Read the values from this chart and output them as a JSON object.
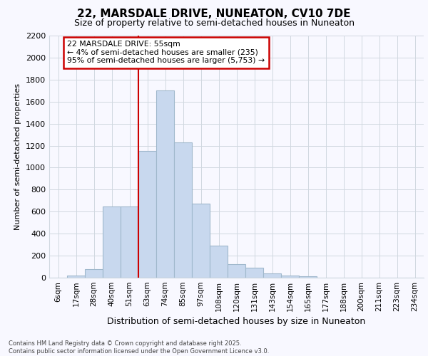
{
  "title_line1": "22, MARSDALE DRIVE, NUNEATON, CV10 7DE",
  "title_line2": "Size of property relative to semi-detached houses in Nuneaton",
  "xlabel": "Distribution of semi-detached houses by size in Nuneaton",
  "ylabel": "Number of semi-detached properties",
  "bar_labels": [
    "6sqm",
    "17sqm",
    "28sqm",
    "40sqm",
    "51sqm",
    "63sqm",
    "74sqm",
    "85sqm",
    "97sqm",
    "108sqm",
    "120sqm",
    "131sqm",
    "143sqm",
    "154sqm",
    "165sqm",
    "177sqm",
    "188sqm",
    "200sqm",
    "211sqm",
    "223sqm",
    "234sqm"
  ],
  "bar_values": [
    0,
    20,
    80,
    650,
    650,
    1150,
    1700,
    1230,
    670,
    290,
    120,
    90,
    40,
    20,
    10,
    0,
    0,
    0,
    0,
    0,
    0
  ],
  "bar_color": "#c8d8ee",
  "bar_edge_color": "#a0b8cc",
  "property_line_index": 4,
  "property_sqm": "55sqm",
  "pct_smaller": 4,
  "count_smaller": 235,
  "pct_larger": 95,
  "count_larger": "5,753",
  "annotation_box_edgecolor": "#cc0000",
  "ylim": [
    0,
    2200
  ],
  "yticks": [
    0,
    200,
    400,
    600,
    800,
    1000,
    1200,
    1400,
    1600,
    1800,
    2000,
    2200
  ],
  "grid_color": "#d0d8e0",
  "footer_line1": "Contains HM Land Registry data © Crown copyright and database right 2025.",
  "footer_line2": "Contains public sector information licensed under the Open Government Licence v3.0.",
  "bg_color": "#f8f8ff"
}
